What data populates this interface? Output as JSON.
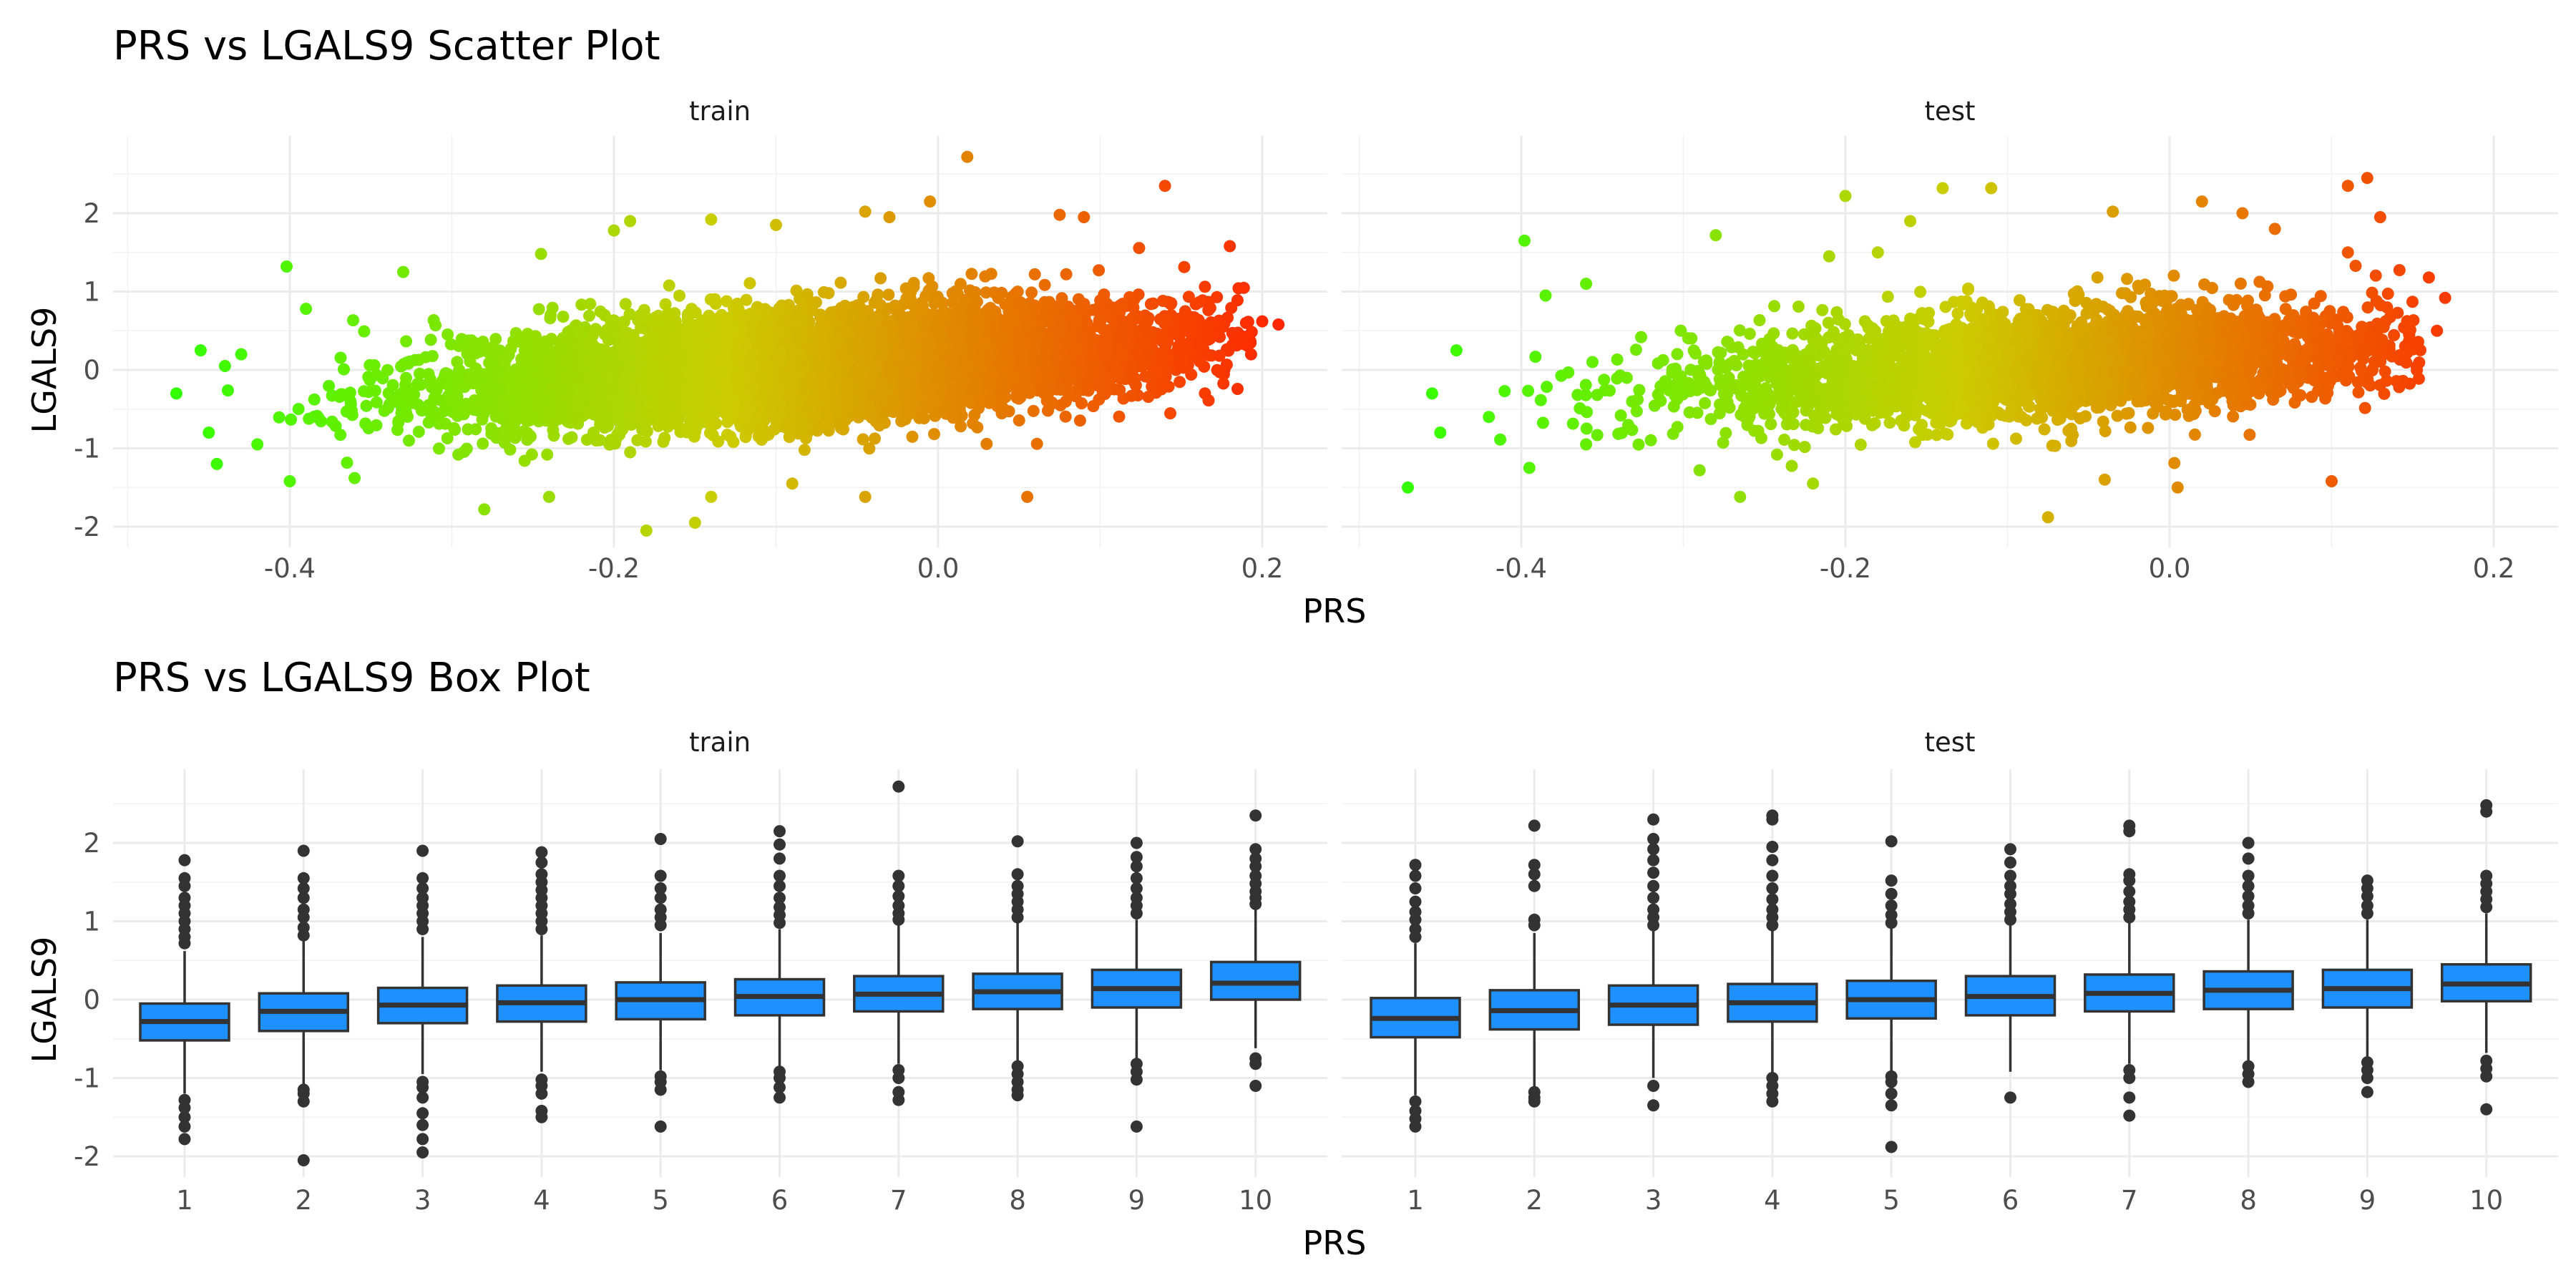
{
  "figure": {
    "scatter_title": "PRS vs LGALS9 Scatter Plot",
    "box_title": "PRS vs LGALS9 Box Plot",
    "scatter_xlabel": "PRS",
    "scatter_ylabel": "LGALS9",
    "box_xlabel": "PRS",
    "box_ylabel": "LGALS9",
    "panels": [
      "train",
      "test"
    ]
  },
  "colors": {
    "gradient_low": "#33ff00",
    "gradient_mid": "#cccc00",
    "gradient_high": "#ff2600",
    "box_fill": "#1e90ff",
    "box_stroke": "#333333",
    "outlier": "#333333"
  },
  "chart_data": [
    {
      "type": "scatter",
      "title": "PRS vs LGALS9 Scatter Plot",
      "xlabel": "PRS",
      "ylabel": "LGALS9",
      "facets": [
        "train",
        "test"
      ],
      "xlim": [
        -0.5,
        0.22
      ],
      "ylim": [
        -2.2,
        2.8
      ],
      "x_ticks": [
        -0.4,
        -0.2,
        0.0,
        0.2
      ],
      "y_ticks": [
        -2,
        -1,
        0,
        1,
        2
      ],
      "color_scale": "green-yellow-red by PRS",
      "grid": true,
      "series": [
        {
          "name": "train",
          "x_range": [
            -0.47,
            0.21
          ],
          "trend": "y ≈ -0.35 at PRS -0.40 rising to y ≈ 0.35 at PRS 0.15",
          "points": [
            [
              -0.47,
              -0.3
            ],
            [
              -0.455,
              0.25
            ],
            [
              -0.45,
              -0.8
            ],
            [
              -0.445,
              -1.2
            ],
            [
              -0.44,
              0.05
            ],
            [
              -0.43,
              0.2
            ],
            [
              -0.42,
              -0.95
            ],
            [
              -0.402,
              1.32
            ],
            [
              -0.4,
              -1.42
            ],
            [
              -0.39,
              0.78
            ],
            [
              -0.36,
              -1.38
            ],
            [
              -0.33,
              1.25
            ],
            [
              -0.28,
              -1.78
            ],
            [
              -0.245,
              1.48
            ],
            [
              -0.24,
              -1.62
            ],
            [
              -0.2,
              1.78
            ],
            [
              -0.18,
              -2.05
            ],
            [
              -0.19,
              1.9
            ],
            [
              -0.15,
              -1.95
            ],
            [
              -0.14,
              -1.62
            ],
            [
              -0.14,
              1.92
            ],
            [
              -0.1,
              1.85
            ],
            [
              -0.09,
              -1.45
            ],
            [
              -0.045,
              2.02
            ],
            [
              -0.045,
              -1.62
            ],
            [
              -0.03,
              1.95
            ],
            [
              -0.005,
              2.15
            ],
            [
              0.018,
              2.72
            ],
            [
              0.055,
              -1.62
            ],
            [
              0.075,
              1.98
            ],
            [
              0.09,
              1.95
            ],
            [
              0.14,
              2.35
            ],
            [
              0.18,
              1.58
            ],
            [
              0.19,
              0.6
            ],
            [
              0.2,
              0.62
            ],
            [
              0.21,
              0.58
            ],
            [
              0.185,
              0.4
            ]
          ]
        },
        {
          "name": "test",
          "x_range": [
            -0.47,
            0.17
          ],
          "trend": "y ≈ -0.35 at PRS -0.40 rising to y ≈ 0.35 at PRS 0.15",
          "points": [
            [
              -0.47,
              -1.5
            ],
            [
              -0.455,
              -0.3
            ],
            [
              -0.45,
              -0.8
            ],
            [
              -0.44,
              0.25
            ],
            [
              -0.42,
              -0.6
            ],
            [
              -0.398,
              1.65
            ],
            [
              -0.395,
              -1.25
            ],
            [
              -0.385,
              0.95
            ],
            [
              -0.36,
              -0.95
            ],
            [
              -0.36,
              1.1
            ],
            [
              -0.29,
              -1.28
            ],
            [
              -0.28,
              1.72
            ],
            [
              -0.265,
              -1.62
            ],
            [
              -0.22,
              -1.45
            ],
            [
              -0.21,
              1.45
            ],
            [
              -0.2,
              2.22
            ],
            [
              -0.18,
              1.5
            ],
            [
              -0.16,
              1.9
            ],
            [
              -0.14,
              2.32
            ],
            [
              -0.11,
              2.32
            ],
            [
              -0.075,
              -1.88
            ],
            [
              -0.04,
              -1.4
            ],
            [
              -0.035,
              2.02
            ],
            [
              0.005,
              -1.5
            ],
            [
              0.02,
              2.15
            ],
            [
              0.045,
              2.0
            ],
            [
              0.065,
              1.8
            ],
            [
              0.1,
              -1.42
            ],
            [
              0.11,
              1.5
            ],
            [
              0.11,
              2.35
            ],
            [
              0.122,
              2.45
            ],
            [
              0.13,
              1.95
            ],
            [
              0.16,
              1.18
            ],
            [
              0.17,
              0.92
            ],
            [
              0.165,
              0.5
            ]
          ]
        }
      ]
    },
    {
      "type": "box",
      "title": "PRS vs LGALS9 Box Plot",
      "xlabel": "PRS",
      "ylabel": "LGALS9",
      "facets": [
        "train",
        "test"
      ],
      "categories": [
        "1",
        "2",
        "3",
        "4",
        "5",
        "6",
        "7",
        "8",
        "9",
        "10"
      ],
      "ylim": [
        -2.2,
        2.8
      ],
      "y_ticks": [
        -2,
        -1,
        0,
        1,
        2
      ],
      "grid": true,
      "series": [
        {
          "name": "train",
          "boxes": [
            {
              "q1": -0.52,
              "median": -0.28,
              "q3": -0.05,
              "lower": -1.2,
              "upper": 0.62,
              "outliers": [
                0.72,
                0.8,
                0.9,
                1.0,
                1.1,
                1.2,
                1.3,
                1.45,
                1.55,
                1.78,
                -1.28,
                -1.38,
                -1.5,
                -1.62,
                -1.78
              ]
            },
            {
              "q1": -0.4,
              "median": -0.15,
              "q3": 0.08,
              "lower": -1.08,
              "upper": 0.75,
              "outliers": [
                0.82,
                0.92,
                1.05,
                1.15,
                1.3,
                1.42,
                1.55,
                1.9,
                -1.15,
                -1.2,
                -1.3,
                -2.05
              ]
            },
            {
              "q1": -0.3,
              "median": -0.07,
              "q3": 0.15,
              "lower": -0.95,
              "upper": 0.8,
              "outliers": [
                0.9,
                1.0,
                1.1,
                1.2,
                1.3,
                1.42,
                1.55,
                1.9,
                -1.05,
                -1.12,
                -1.25,
                -1.45,
                -1.6,
                -1.78,
                -1.95
              ]
            },
            {
              "q1": -0.28,
              "median": -0.04,
              "q3": 0.18,
              "lower": -0.92,
              "upper": 0.82,
              "outliers": [
                0.9,
                1.0,
                1.1,
                1.2,
                1.3,
                1.4,
                1.5,
                1.6,
                1.75,
                1.88,
                -1.02,
                -1.1,
                -1.2,
                -1.42,
                -1.5
              ]
            },
            {
              "q1": -0.25,
              "median": 0.0,
              "q3": 0.22,
              "lower": -0.9,
              "upper": 0.85,
              "outliers": [
                0.95,
                1.05,
                1.15,
                1.3,
                1.42,
                1.58,
                2.05,
                -0.98,
                -1.05,
                -1.15,
                -1.62
              ]
            },
            {
              "q1": -0.2,
              "median": 0.04,
              "q3": 0.26,
              "lower": -0.85,
              "upper": 0.9,
              "outliers": [
                0.98,
                1.08,
                1.18,
                1.3,
                1.45,
                1.58,
                1.8,
                1.98,
                2.15,
                -0.92,
                -1.0,
                -1.12,
                -1.25
              ]
            },
            {
              "q1": -0.15,
              "median": 0.07,
              "q3": 0.3,
              "lower": -0.82,
              "upper": 0.95,
              "outliers": [
                1.02,
                1.1,
                1.2,
                1.32,
                1.45,
                1.58,
                2.72,
                -0.9,
                -1.0,
                -1.18,
                -1.28
              ]
            },
            {
              "q1": -0.12,
              "median": 0.1,
              "q3": 0.33,
              "lower": -0.78,
              "upper": 0.98,
              "outliers": [
                1.05,
                1.15,
                1.25,
                1.35,
                1.45,
                1.6,
                2.02,
                -0.85,
                -0.95,
                -1.05,
                -1.15,
                -1.22
              ]
            },
            {
              "q1": -0.1,
              "median": 0.14,
              "q3": 0.38,
              "lower": -0.75,
              "upper": 1.02,
              "outliers": [
                1.1,
                1.2,
                1.3,
                1.42,
                1.55,
                1.7,
                1.82,
                2.0,
                -0.82,
                -0.92,
                -1.02,
                -1.62
              ]
            },
            {
              "q1": 0.0,
              "median": 0.21,
              "q3": 0.48,
              "lower": -0.62,
              "upper": 1.15,
              "outliers": [
                1.22,
                1.3,
                1.38,
                1.48,
                1.58,
                1.7,
                1.8,
                1.92,
                2.35,
                -0.75,
                -0.82,
                -1.1
              ]
            }
          ]
        },
        {
          "name": "test",
          "boxes": [
            {
              "q1": -0.48,
              "median": -0.24,
              "q3": 0.02,
              "lower": -1.22,
              "upper": 0.72,
              "outliers": [
                0.8,
                0.9,
                1.02,
                1.12,
                1.25,
                1.42,
                1.58,
                1.72,
                -1.3,
                -1.42,
                -1.52,
                -1.62
              ]
            },
            {
              "q1": -0.38,
              "median": -0.14,
              "q3": 0.12,
              "lower": -1.12,
              "upper": 0.85,
              "outliers": [
                0.95,
                1.02,
                1.45,
                1.6,
                1.72,
                2.22,
                -1.18,
                -1.25,
                -1.3
              ]
            },
            {
              "q1": -0.32,
              "median": -0.07,
              "q3": 0.18,
              "lower": -1.0,
              "upper": 0.88,
              "outliers": [
                0.95,
                1.05,
                1.15,
                1.3,
                1.45,
                1.62,
                1.78,
                1.92,
                2.05,
                2.3,
                -1.1,
                -1.35
              ]
            },
            {
              "q1": -0.28,
              "median": -0.04,
              "q3": 0.2,
              "lower": -0.95,
              "upper": 0.88,
              "outliers": [
                0.95,
                1.05,
                1.15,
                1.28,
                1.42,
                1.58,
                1.78,
                1.95,
                2.3,
                2.35,
                -1.0,
                -1.1,
                -1.2,
                -1.3
              ]
            },
            {
              "q1": -0.24,
              "median": 0.0,
              "q3": 0.24,
              "lower": -0.92,
              "upper": 0.92,
              "outliers": [
                0.98,
                1.08,
                1.2,
                1.35,
                1.52,
                2.02,
                -0.98,
                -1.05,
                -1.2,
                -1.35,
                -1.88
              ]
            },
            {
              "q1": -0.2,
              "median": 0.04,
              "q3": 0.3,
              "lower": -0.92,
              "upper": 0.95,
              "outliers": [
                1.02,
                1.12,
                1.22,
                1.35,
                1.45,
                1.58,
                1.75,
                1.92,
                -1.25
              ]
            },
            {
              "q1": -0.15,
              "median": 0.08,
              "q3": 0.32,
              "lower": -0.82,
              "upper": 0.98,
              "outliers": [
                1.05,
                1.15,
                1.25,
                1.38,
                1.52,
                1.6,
                2.15,
                2.22,
                -0.9,
                -1.0,
                -1.25,
                -1.48
              ]
            },
            {
              "q1": -0.12,
              "median": 0.12,
              "q3": 0.36,
              "lower": -0.8,
              "upper": 1.02,
              "outliers": [
                1.1,
                1.2,
                1.32,
                1.45,
                1.58,
                1.8,
                2.0,
                -0.85,
                -0.95,
                -1.05
              ]
            },
            {
              "q1": -0.1,
              "median": 0.14,
              "q3": 0.38,
              "lower": -0.75,
              "upper": 1.02,
              "outliers": [
                1.1,
                1.2,
                1.32,
                1.42,
                1.52,
                -0.8,
                -0.9,
                -1.0,
                -1.18
              ]
            },
            {
              "q1": -0.02,
              "median": 0.2,
              "q3": 0.45,
              "lower": -0.68,
              "upper": 1.1,
              "outliers": [
                1.18,
                1.28,
                1.38,
                1.48,
                1.58,
                2.4,
                2.48,
                -0.78,
                -0.88,
                -0.98,
                -1.4
              ]
            }
          ]
        }
      ]
    }
  ]
}
